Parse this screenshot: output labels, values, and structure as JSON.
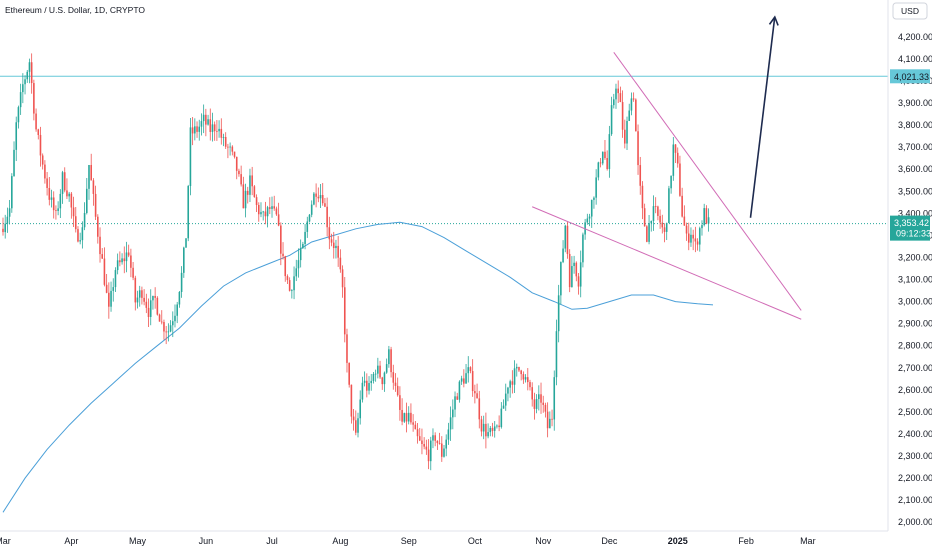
{
  "chart_data": {
    "type": "candlestick",
    "title": "Ethereum / U.S. Dollar, 1D, CRYPTO",
    "currency": "USD",
    "ylim": [
      1960,
      4340
    ],
    "y_ticks": [
      2000,
      2100,
      2200,
      2300,
      2400,
      2500,
      2600,
      2700,
      2800,
      2900,
      3000,
      3100,
      3200,
      3300,
      3400,
      3500,
      3600,
      3700,
      3800,
      3900,
      4000,
      4100,
      4200
    ],
    "y_tick_labels": [
      "2,000.00",
      "2,100.00",
      "2,200.00",
      "2,300.00",
      "2,400.00",
      "2,500.00",
      "2,600.00",
      "2,700.00",
      "2,800.00",
      "2,900.00",
      "3,000.00",
      "3,100.00",
      "3,200.00",
      "3,300.00",
      "3,400.00",
      "3,500.00",
      "3,600.00",
      "3,700.00",
      "3,800.00",
      "3,900.00",
      "4,000.00",
      "4,100.00",
      "4,200.00"
    ],
    "x_ticks": [
      {
        "label": "Mar",
        "day": 0,
        "bold": false
      },
      {
        "label": "Apr",
        "day": 31,
        "bold": false
      },
      {
        "label": "May",
        "day": 61,
        "bold": false
      },
      {
        "label": "Jun",
        "day": 92,
        "bold": false
      },
      {
        "label": "Jul",
        "day": 122,
        "bold": false
      },
      {
        "label": "Aug",
        "day": 153,
        "bold": false
      },
      {
        "label": "Sep",
        "day": 184,
        "bold": false
      },
      {
        "label": "Oct",
        "day": 214,
        "bold": false
      },
      {
        "label": "Nov",
        "day": 245,
        "bold": false
      },
      {
        "label": "Dec",
        "day": 275,
        "bold": false
      },
      {
        "label": "2025",
        "day": 306,
        "bold": true
      },
      {
        "label": "Feb",
        "day": 337,
        "bold": false
      },
      {
        "label": "Mar",
        "day": 365,
        "bold": false
      }
    ],
    "ohlc_anchors": [
      [
        0,
        3350
      ],
      [
        3,
        3420
      ],
      [
        6,
        3800
      ],
      [
        9,
        3980
      ],
      [
        12,
        4090
      ],
      [
        15,
        3780
      ],
      [
        18,
        3620
      ],
      [
        21,
        3480
      ],
      [
        24,
        3380
      ],
      [
        27,
        3560
      ],
      [
        30,
        3480
      ],
      [
        33,
        3300
      ],
      [
        36,
        3320
      ],
      [
        39,
        3620
      ],
      [
        42,
        3380
      ],
      [
        45,
        3180
      ],
      [
        48,
        2950
      ],
      [
        51,
        3150
      ],
      [
        54,
        3180
      ],
      [
        57,
        3230
      ],
      [
        60,
        3000
      ],
      [
        63,
        3050
      ],
      [
        66,
        2960
      ],
      [
        69,
        3010
      ],
      [
        72,
        2900
      ],
      [
        75,
        2870
      ],
      [
        78,
        2960
      ],
      [
        81,
        3120
      ],
      [
        83,
        3300
      ],
      [
        85,
        3760
      ],
      [
        88,
        3780
      ],
      [
        91,
        3820
      ],
      [
        94,
        3780
      ],
      [
        97,
        3800
      ],
      [
        100,
        3720
      ],
      [
        103,
        3680
      ],
      [
        106,
        3600
      ],
      [
        109,
        3450
      ],
      [
        112,
        3540
      ],
      [
        115,
        3430
      ],
      [
        118,
        3380
      ],
      [
        121,
        3420
      ],
      [
        124,
        3380
      ],
      [
        127,
        3180
      ],
      [
        130,
        3050
      ],
      [
        133,
        3150
      ],
      [
        136,
        3240
      ],
      [
        139,
        3420
      ],
      [
        142,
        3510
      ],
      [
        145,
        3480
      ],
      [
        148,
        3300
      ],
      [
        151,
        3240
      ],
      [
        154,
        3050
      ],
      [
        156,
        2700
      ],
      [
        158,
        2500
      ],
      [
        160,
        2380
      ],
      [
        163,
        2640
      ],
      [
        166,
        2600
      ],
      [
        169,
        2700
      ],
      [
        172,
        2650
      ],
      [
        175,
        2760
      ],
      [
        178,
        2600
      ],
      [
        181,
        2450
      ],
      [
        184,
        2480
      ],
      [
        187,
        2390
      ],
      [
        190,
        2340
      ],
      [
        193,
        2310
      ],
      [
        196,
        2390
      ],
      [
        199,
        2310
      ],
      [
        202,
        2420
      ],
      [
        205,
        2560
      ],
      [
        208,
        2640
      ],
      [
        211,
        2680
      ],
      [
        214,
        2600
      ],
      [
        217,
        2440
      ],
      [
        220,
        2400
      ],
      [
        223,
        2400
      ],
      [
        226,
        2480
      ],
      [
        229,
        2630
      ],
      [
        232,
        2670
      ],
      [
        235,
        2700
      ],
      [
        238,
        2620
      ],
      [
        241,
        2520
      ],
      [
        244,
        2560
      ],
      [
        247,
        2430
      ],
      [
        249,
        2480
      ],
      [
        251,
        2900
      ],
      [
        253,
        3150
      ],
      [
        255,
        3350
      ],
      [
        257,
        3100
      ],
      [
        259,
        3180
      ],
      [
        261,
        3100
      ],
      [
        263,
        3300
      ],
      [
        265,
        3390
      ],
      [
        267,
        3450
      ],
      [
        270,
        3600
      ],
      [
        272,
        3700
      ],
      [
        274,
        3600
      ],
      [
        276,
        3860
      ],
      [
        278,
        3990
      ],
      [
        280,
        3880
      ],
      [
        282,
        3700
      ],
      [
        284,
        3900
      ],
      [
        286,
        3940
      ],
      [
        288,
        3600
      ],
      [
        290,
        3400
      ],
      [
        292,
        3300
      ],
      [
        294,
        3400
      ],
      [
        296,
        3400
      ],
      [
        298,
        3360
      ],
      [
        300,
        3300
      ],
      [
        302,
        3480
      ],
      [
        304,
        3700
      ],
      [
        306,
        3600
      ],
      [
        308,
        3400
      ],
      [
        310,
        3280
      ],
      [
        312,
        3320
      ],
      [
        314,
        3250
      ],
      [
        316,
        3330
      ],
      [
        318,
        3400
      ],
      [
        320,
        3353
      ]
    ],
    "ma_series": [
      [
        0,
        2045
      ],
      [
        10,
        2200
      ],
      [
        20,
        2330
      ],
      [
        30,
        2440
      ],
      [
        40,
        2540
      ],
      [
        50,
        2630
      ],
      [
        60,
        2720
      ],
      [
        70,
        2800
      ],
      [
        80,
        2880
      ],
      [
        90,
        2980
      ],
      [
        100,
        3070
      ],
      [
        110,
        3130
      ],
      [
        120,
        3170
      ],
      [
        130,
        3210
      ],
      [
        140,
        3270
      ],
      [
        150,
        3300
      ],
      [
        160,
        3330
      ],
      [
        170,
        3350
      ],
      [
        180,
        3360
      ],
      [
        190,
        3340
      ],
      [
        200,
        3290
      ],
      [
        210,
        3230
      ],
      [
        220,
        3170
      ],
      [
        230,
        3110
      ],
      [
        240,
        3040
      ],
      [
        250,
        3000
      ],
      [
        258,
        2965
      ],
      [
        265,
        2970
      ],
      [
        275,
        3000
      ],
      [
        285,
        3030
      ],
      [
        295,
        3030
      ],
      [
        305,
        3000
      ],
      [
        315,
        2990
      ],
      [
        322,
        2985
      ]
    ],
    "last_price": "3,353.42",
    "countdown": "09:12:33",
    "level_price": 4021.33,
    "level_label": "4,021.33",
    "current_price": 3353.42,
    "trendline_upper": [
      [
        277,
        4130
      ],
      [
        362,
        2960
      ]
    ],
    "trendline_lower": [
      [
        240,
        3430
      ],
      [
        362,
        2920
      ]
    ],
    "arrow": [
      [
        339,
        3380
      ],
      [
        350,
        4290
      ]
    ],
    "colors": {
      "up": "#26a69a",
      "down": "#ef5350",
      "ma": "#4a9fd8",
      "level": "#66c8d8",
      "price_label": "#26a69a",
      "trendline": "#d16cb6",
      "arrow": "#1e2b4f"
    }
  }
}
